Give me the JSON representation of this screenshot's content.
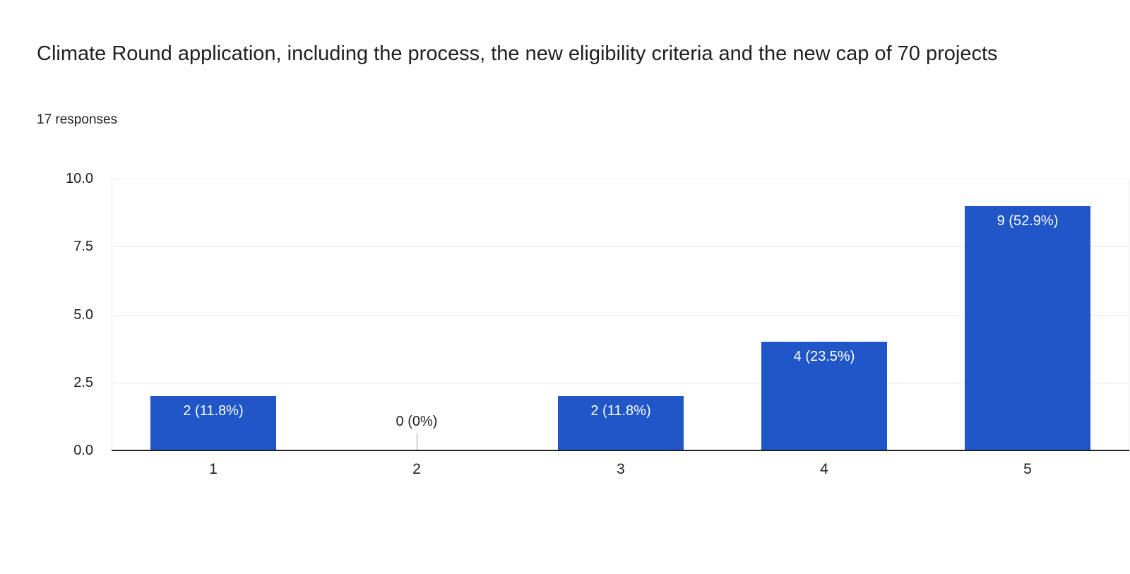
{
  "header": {
    "title": "Climate Round application, including the process, the new eligibility criteria and the new cap of 70 projects",
    "responses": "17 responses"
  },
  "chart_data": {
    "type": "bar",
    "title": "Climate Round application, including the process, the new eligibility criteria and the new cap of 70 projects",
    "subtitle": "17 responses",
    "categories": [
      "1",
      "2",
      "3",
      "4",
      "5"
    ],
    "values": [
      2,
      0,
      2,
      4,
      9
    ],
    "bar_labels": [
      "2 (11.8%)",
      "0 (0%)",
      "2 (11.8%)",
      "4 (23.5%)",
      "9 (52.9%)"
    ],
    "percentages": [
      11.8,
      0,
      11.8,
      23.5,
      52.9
    ],
    "total_responses": 17,
    "xlabel": "",
    "ylabel": "",
    "ylim": [
      0,
      10
    ],
    "ytick_values": [
      0,
      2.5,
      5,
      7.5,
      10
    ],
    "ytick_labels": [
      "0.0",
      "2.5",
      "5.0",
      "7.5",
      "10.0"
    ],
    "grid": true,
    "legend": "none",
    "colors": {
      "bar": "#2056c8",
      "bar_label": "#ffffff",
      "grid": "#e8e8e8",
      "axis": "#212121",
      "tick_text": "#1f1f1f",
      "zero_stub": "#9e9e9e"
    }
  }
}
